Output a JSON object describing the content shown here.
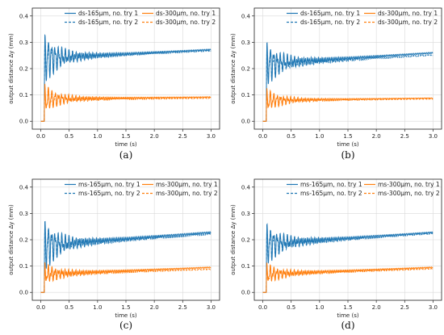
{
  "colors": {
    "blue": "#1f77b4",
    "orange": "#ff7f0e",
    "grid": "#d9d9d9"
  },
  "chart_data": [
    {
      "type": "line",
      "caption": "(a)",
      "xlabel": "time (s)",
      "ylabel": "output distance Δy (mm)",
      "xlim": [
        -0.15,
        3.15
      ],
      "ylim": [
        -0.03,
        0.43
      ],
      "xticks": [
        "0.0",
        "0.5",
        "1.0",
        "1.5",
        "2.0",
        "2.5",
        "3.0"
      ],
      "yticks": [
        "0.0",
        "0.1",
        "0.2",
        "0.3",
        "0.4"
      ],
      "grid": true,
      "legend": "top-right",
      "series": [
        {
          "name": "ds-165μm, no. try 1",
          "color": "blue",
          "dash": false,
          "peak": 0.32,
          "start": 0.24,
          "end": 0.272,
          "ripple": 0.045,
          "ripple_end": 0.006
        },
        {
          "name": "ds-165μm, no. try 2",
          "color": "blue",
          "dash": true,
          "peak": 0.305,
          "start": 0.24,
          "end": 0.268,
          "ripple": 0.04,
          "ripple_end": 0.005
        },
        {
          "name": "ds-300μm, no. try 1",
          "color": "orange",
          "dash": false,
          "peak": 0.13,
          "start": 0.085,
          "end": 0.092,
          "ripple": 0.025,
          "ripple_end": 0.004
        },
        {
          "name": "ds-300μm, no. try 2",
          "color": "orange",
          "dash": true,
          "peak": 0.12,
          "start": 0.082,
          "end": 0.088,
          "ripple": 0.022,
          "ripple_end": 0.004
        }
      ]
    },
    {
      "type": "line",
      "caption": "(b)",
      "xlabel": "time (s)",
      "ylabel": "output distance Δy (mm)",
      "xlim": [
        -0.15,
        3.15
      ],
      "ylim": [
        -0.03,
        0.43
      ],
      "xticks": [
        "0.0",
        "0.5",
        "1.0",
        "1.5",
        "2.0",
        "2.5",
        "3.0"
      ],
      "yticks": [
        "0.0",
        "0.1",
        "0.2",
        "0.3",
        "0.4"
      ],
      "grid": true,
      "legend": "top-right",
      "series": [
        {
          "name": "ds-165μm, no. try 1",
          "color": "blue",
          "dash": false,
          "peak": 0.29,
          "start": 0.22,
          "end": 0.26,
          "ripple": 0.045,
          "ripple_end": 0.006
        },
        {
          "name": "ds-165μm, no. try 2",
          "color": "blue",
          "dash": true,
          "peak": 0.27,
          "start": 0.215,
          "end": 0.252,
          "ripple": 0.04,
          "ripple_end": 0.005
        },
        {
          "name": "ds-300μm, no. try 1",
          "color": "orange",
          "dash": false,
          "peak": 0.115,
          "start": 0.08,
          "end": 0.088,
          "ripple": 0.022,
          "ripple_end": 0.003
        },
        {
          "name": "ds-300μm, no. try 2",
          "color": "orange",
          "dash": true,
          "peak": 0.108,
          "start": 0.078,
          "end": 0.085,
          "ripple": 0.02,
          "ripple_end": 0.003
        }
      ]
    },
    {
      "type": "line",
      "caption": "(c)",
      "xlabel": "time (s)",
      "ylabel": "output distance Δy (mm)",
      "xlim": [
        -0.15,
        3.15
      ],
      "ylim": [
        -0.03,
        0.43
      ],
      "xticks": [
        "0.0",
        "0.5",
        "1.0",
        "1.5",
        "2.0",
        "2.5",
        "3.0"
      ],
      "yticks": [
        "0.0",
        "0.1",
        "0.2",
        "0.3",
        "0.4"
      ],
      "grid": true,
      "legend": "top-right",
      "series": [
        {
          "name": "ms-165μm, no. try 1",
          "color": "blue",
          "dash": false,
          "peak": 0.26,
          "start": 0.18,
          "end": 0.228,
          "ripple": 0.05,
          "ripple_end": 0.008
        },
        {
          "name": "ms-165μm, no. try 2",
          "color": "blue",
          "dash": true,
          "peak": 0.25,
          "start": 0.178,
          "end": 0.222,
          "ripple": 0.045,
          "ripple_end": 0.007
        },
        {
          "name": "ms-300μm, no. try 1",
          "color": "orange",
          "dash": false,
          "peak": 0.1,
          "start": 0.07,
          "end": 0.095,
          "ripple": 0.028,
          "ripple_end": 0.005
        },
        {
          "name": "ms-300μm, no. try 2",
          "color": "orange",
          "dash": true,
          "peak": 0.095,
          "start": 0.068,
          "end": 0.088,
          "ripple": 0.025,
          "ripple_end": 0.004
        }
      ]
    },
    {
      "type": "line",
      "caption": "(d)",
      "xlabel": "time (s)",
      "ylabel": "output distance Δy (mm)",
      "xlim": [
        -0.15,
        3.15
      ],
      "ylim": [
        -0.03,
        0.43
      ],
      "xticks": [
        "0.0",
        "0.5",
        "1.0",
        "1.5",
        "2.0",
        "2.5",
        "3.0"
      ],
      "yticks": [
        "0.0",
        "0.1",
        "0.2",
        "0.3",
        "0.4"
      ],
      "grid": true,
      "legend": "top-right",
      "series": [
        {
          "name": "ms-165μm, no. try 1",
          "color": "blue",
          "dash": false,
          "peak": 0.25,
          "start": 0.185,
          "end": 0.228,
          "ripple": 0.045,
          "ripple_end": 0.006
        },
        {
          "name": "ms-165μm, no. try 2",
          "color": "blue",
          "dash": true,
          "peak": 0.24,
          "start": 0.182,
          "end": 0.224,
          "ripple": 0.04,
          "ripple_end": 0.005
        },
        {
          "name": "ms-300μm, no. try 1",
          "color": "orange",
          "dash": false,
          "peak": 0.1,
          "start": 0.07,
          "end": 0.095,
          "ripple": 0.025,
          "ripple_end": 0.005
        },
        {
          "name": "ms-300μm, no. try 2",
          "color": "orange",
          "dash": true,
          "peak": 0.095,
          "start": 0.068,
          "end": 0.09,
          "ripple": 0.022,
          "ripple_end": 0.004
        }
      ]
    }
  ]
}
